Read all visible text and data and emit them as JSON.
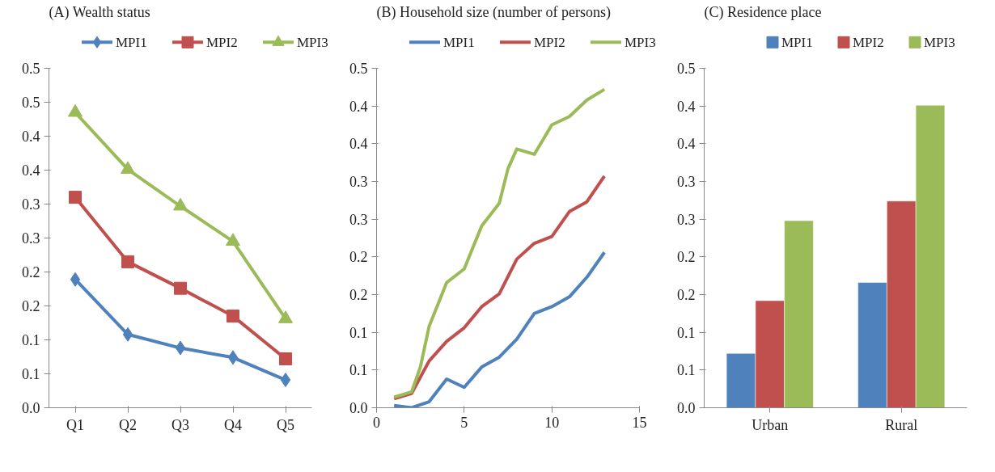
{
  "chart_data": [
    {
      "type": "line",
      "title": "(A) Wealth status",
      "categories": [
        "Q1",
        "Q2",
        "Q3",
        "Q4",
        "Q5"
      ],
      "legend": "top",
      "grid": false,
      "series": [
        {
          "name": "MPI1",
          "color": "#4f81bd",
          "marker": "diamond",
          "values": [
            0.189,
            0.108,
            0.088,
            0.074,
            0.041
          ]
        },
        {
          "name": "MPI2",
          "color": "#c0504d",
          "marker": "square",
          "values": [
            0.31,
            0.215,
            0.176,
            0.135,
            0.072
          ]
        },
        {
          "name": "MPI3",
          "color": "#9bbb59",
          "marker": "triangle",
          "values": [
            0.435,
            0.351,
            0.297,
            0.245,
            0.131
          ]
        }
      ],
      "ylim": [
        0,
        0.5
      ],
      "yticks": [
        {
          "value": 0,
          "label": "0.0"
        },
        {
          "value": 0.05,
          "label": "0.1"
        },
        {
          "value": 0.1,
          "label": "0.1"
        },
        {
          "value": 0.15,
          "label": "0.2"
        },
        {
          "value": 0.2,
          "label": "0.2"
        },
        {
          "value": 0.25,
          "label": "0.3"
        },
        {
          "value": 0.3,
          "label": "0.3"
        },
        {
          "value": 0.35,
          "label": "0.4"
        },
        {
          "value": 0.4,
          "label": "0.4"
        },
        {
          "value": 0.45,
          "label": "0.5"
        },
        {
          "value": 0.5,
          "label": "0.5"
        }
      ]
    },
    {
      "type": "line",
      "title": "(B) Household size (number of persons)",
      "x": [
        1,
        2,
        2.5,
        3,
        4,
        5,
        6,
        7,
        7.5,
        8,
        9,
        10,
        11,
        12,
        13
      ],
      "legend": "top",
      "grid": false,
      "marker": "none",
      "series": [
        {
          "name": "MPI1",
          "color": "#4f81bd",
          "x": [
            1,
            2,
            3,
            4,
            5,
            6,
            7,
            8,
            9,
            10,
            11,
            12,
            13
          ],
          "values": [
            0.003,
            0.0,
            0.008,
            0.038,
            0.027,
            0.054,
            0.067,
            0.091,
            0.125,
            0.134,
            0.147,
            0.173,
            0.206
          ]
        },
        {
          "name": "MPI2",
          "color": "#c0504d",
          "x": [
            1,
            2,
            3,
            4,
            5,
            6,
            7,
            8,
            9,
            10,
            11,
            12,
            13
          ],
          "values": [
            0.012,
            0.019,
            0.062,
            0.088,
            0.106,
            0.134,
            0.151,
            0.197,
            0.218,
            0.227,
            0.26,
            0.273,
            0.307
          ]
        },
        {
          "name": "MPI3",
          "color": "#9bbb59",
          "values": [
            0.014,
            0.021,
            0.054,
            0.108,
            0.166,
            0.184,
            0.241,
            0.271,
            0.317,
            0.343,
            0.336,
            0.375,
            0.386,
            0.408,
            0.422
          ]
        }
      ],
      "xlim": [
        0,
        15
      ],
      "xticks": [
        0,
        5,
        10,
        15
      ],
      "ylim": [
        0,
        0.45
      ],
      "yticks": [
        {
          "value": 0,
          "label": "0.0"
        },
        {
          "value": 0.05,
          "label": "0.1"
        },
        {
          "value": 0.1,
          "label": "0.1"
        },
        {
          "value": 0.15,
          "label": "0.2"
        },
        {
          "value": 0.2,
          "label": "0.2"
        },
        {
          "value": 0.25,
          "label": "0.3"
        },
        {
          "value": 0.3,
          "label": "0.3"
        },
        {
          "value": 0.35,
          "label": "0.4"
        },
        {
          "value": 0.4,
          "label": "0.4"
        },
        {
          "value": 0.45,
          "label": "0.5"
        }
      ]
    },
    {
      "type": "bar",
      "title": "(C) Residence place",
      "categories": [
        "Urban",
        "Rural"
      ],
      "legend": "top",
      "grid": false,
      "series": [
        {
          "name": "MPI1",
          "color": "#4f81bd",
          "values": [
            0.072,
            0.166
          ]
        },
        {
          "name": "MPI2",
          "color": "#c0504d",
          "values": [
            0.142,
            0.274
          ]
        },
        {
          "name": "MPI3",
          "color": "#9bbb59",
          "values": [
            0.248,
            0.401
          ]
        }
      ],
      "ylim": [
        0,
        0.45
      ],
      "yticks": [
        {
          "value": 0,
          "label": "0.0"
        },
        {
          "value": 0.05,
          "label": "0.1"
        },
        {
          "value": 0.1,
          "label": "0.1"
        },
        {
          "value": 0.15,
          "label": "0.2"
        },
        {
          "value": 0.2,
          "label": "0.2"
        },
        {
          "value": 0.25,
          "label": "0.3"
        },
        {
          "value": 0.3,
          "label": "0.3"
        },
        {
          "value": 0.35,
          "label": "0.4"
        },
        {
          "value": 0.4,
          "label": "0.4"
        },
        {
          "value": 0.45,
          "label": "0.5"
        }
      ]
    }
  ]
}
